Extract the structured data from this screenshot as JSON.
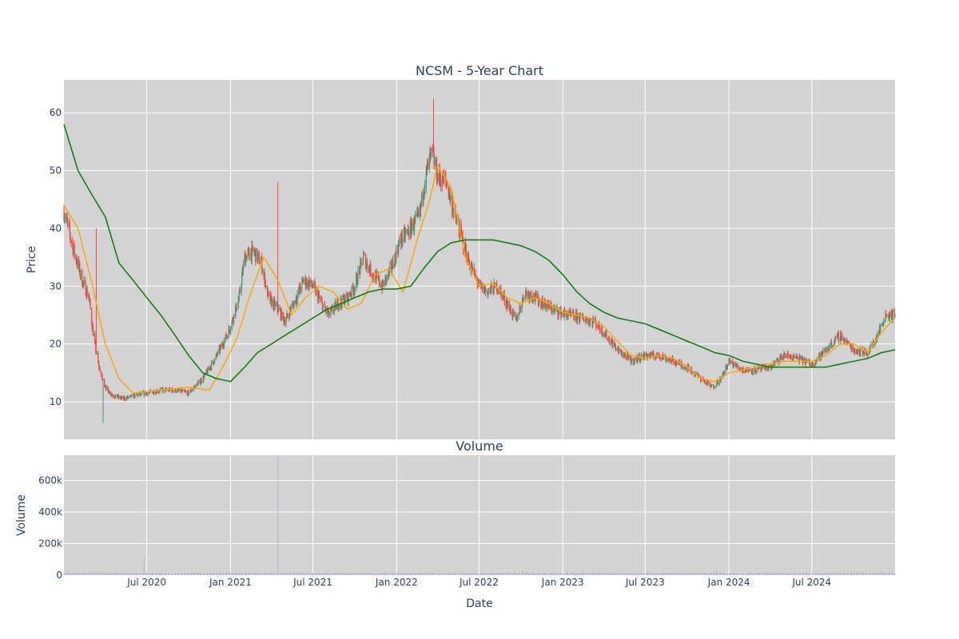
{
  "colors": {
    "plot_bg": "#d3d3d3",
    "grid": "#ffffff",
    "up": "#3d9970",
    "down": "#ff4136",
    "ma_short": "#ffa500",
    "ma_long": "#008000",
    "volume": "#b0b0d0",
    "text": "#2a3f5f"
  },
  "chart_data": [
    {
      "type": "candlestick",
      "title": "NCSM - 5-Year Chart",
      "xlabel": "",
      "ylabel": "Price",
      "ylim": [
        3.5,
        65.7
      ],
      "xlim": [
        "2020-01-01",
        "2024-12-31"
      ],
      "yticks": [
        10,
        20,
        30,
        40,
        50,
        60
      ],
      "xticks": [
        "2020-07-01",
        "2021-01-01",
        "2021-07-01",
        "2022-01-01",
        "2022-07-01",
        "2023-01-01",
        "2023-07-01",
        "2024-01-01",
        "2024-07-01"
      ],
      "grid": true,
      "close_path": [
        [
          "2020-01-01",
          43
        ],
        [
          "2020-01-20",
          37
        ],
        [
          "2020-02-10",
          31
        ],
        [
          "2020-02-25",
          28
        ],
        [
          "2020-03-05",
          22
        ],
        [
          "2020-03-15",
          17
        ],
        [
          "2020-03-25",
          14
        ],
        [
          "2020-04-05",
          12
        ],
        [
          "2020-04-20",
          11
        ],
        [
          "2020-05-10",
          10.5
        ],
        [
          "2020-06-01",
          11
        ],
        [
          "2020-07-01",
          11.5
        ],
        [
          "2020-08-01",
          12
        ],
        [
          "2020-09-01",
          12
        ],
        [
          "2020-10-01",
          11.5
        ],
        [
          "2020-11-01",
          14
        ],
        [
          "2020-11-25",
          17
        ],
        [
          "2020-12-15",
          20
        ],
        [
          "2021-01-01",
          23
        ],
        [
          "2021-01-20",
          28
        ],
        [
          "2021-02-01",
          35
        ],
        [
          "2021-02-20",
          36
        ],
        [
          "2021-03-10",
          34
        ],
        [
          "2021-03-25",
          28
        ],
        [
          "2021-04-15",
          26
        ],
        [
          "2021-05-01",
          24
        ],
        [
          "2021-05-20",
          27
        ],
        [
          "2021-06-10",
          31
        ],
        [
          "2021-07-01",
          30
        ],
        [
          "2021-07-20",
          27
        ],
        [
          "2021-08-05",
          25
        ],
        [
          "2021-08-25",
          27
        ],
        [
          "2021-09-15",
          28
        ],
        [
          "2021-10-01",
          30
        ],
        [
          "2021-10-20",
          35
        ],
        [
          "2021-11-10",
          32
        ],
        [
          "2021-12-01",
          30
        ],
        [
          "2021-12-20",
          33
        ],
        [
          "2022-01-10",
          38
        ],
        [
          "2022-02-01",
          40
        ],
        [
          "2022-02-20",
          42
        ],
        [
          "2022-03-05",
          49
        ],
        [
          "2022-03-20",
          53
        ],
        [
          "2022-04-01",
          49
        ],
        [
          "2022-04-20",
          48
        ],
        [
          "2022-05-10",
          42
        ],
        [
          "2022-05-25",
          38
        ],
        [
          "2022-06-10",
          34
        ],
        [
          "2022-07-01",
          30
        ],
        [
          "2022-07-20",
          29
        ],
        [
          "2022-08-10",
          30
        ],
        [
          "2022-09-01",
          27
        ],
        [
          "2022-09-20",
          24
        ],
        [
          "2022-10-10",
          29
        ],
        [
          "2022-11-01",
          28
        ],
        [
          "2022-11-20",
          27
        ],
        [
          "2022-12-10",
          26
        ],
        [
          "2023-01-10",
          25
        ],
        [
          "2023-02-10",
          24.5
        ],
        [
          "2023-03-10",
          24
        ],
        [
          "2023-04-01",
          22
        ],
        [
          "2023-05-01",
          19
        ],
        [
          "2023-06-01",
          17
        ],
        [
          "2023-07-01",
          18
        ],
        [
          "2023-08-01",
          18
        ],
        [
          "2023-09-01",
          17
        ],
        [
          "2023-10-01",
          16
        ],
        [
          "2023-11-01",
          14
        ],
        [
          "2023-11-25",
          12.5
        ],
        [
          "2023-12-15",
          14
        ],
        [
          "2024-01-01",
          17
        ],
        [
          "2024-02-01",
          15.5
        ],
        [
          "2024-03-01",
          15.5
        ],
        [
          "2024-04-01",
          16
        ],
        [
          "2024-05-01",
          18
        ],
        [
          "2024-06-01",
          17.5
        ],
        [
          "2024-07-01",
          16.5
        ],
        [
          "2024-08-01",
          19
        ],
        [
          "2024-09-01",
          21.5
        ],
        [
          "2024-10-01",
          19
        ],
        [
          "2024-11-01",
          18.5
        ],
        [
          "2024-11-20",
          21
        ],
        [
          "2024-12-10",
          25
        ],
        [
          "2024-12-31",
          25
        ]
      ],
      "spikes": [
        [
          "2020-03-12",
          40,
          23
        ],
        [
          "2021-04-15",
          48,
          27
        ],
        [
          "2022-03-23",
          62.5,
          50
        ],
        [
          "2020-03-27",
          6.3,
          11
        ]
      ],
      "series": [
        {
          "type": "line",
          "x": [
            "2020-01-01",
            "2020-02-01",
            "2020-03-01",
            "2020-04-01",
            "2020-05-01",
            "2020-06-01",
            "2020-08-01",
            "2020-10-01",
            "2020-11-15",
            "2020-12-15",
            "2021-01-15",
            "2021-02-15",
            "2021-03-15",
            "2021-04-15",
            "2021-05-15",
            "2021-06-15",
            "2021-07-15",
            "2021-08-15",
            "2021-09-15",
            "2021-10-15",
            "2021-11-15",
            "2021-12-15",
            "2022-01-15",
            "2022-02-15",
            "2022-03-15",
            "2022-04-01",
            "2022-05-01",
            "2022-06-01",
            "2022-07-01",
            "2022-08-01",
            "2022-09-01",
            "2022-10-01",
            "2022-11-01",
            "2022-12-01",
            "2023-01-01",
            "2023-02-01",
            "2023-03-01",
            "2023-04-01",
            "2023-05-01",
            "2023-06-01",
            "2023-07-01",
            "2023-08-01",
            "2023-09-01",
            "2023-10-01",
            "2023-11-01",
            "2023-12-01",
            "2024-01-01",
            "2024-02-01",
            "2024-03-01",
            "2024-04-01",
            "2024-05-01",
            "2024-06-01",
            "2024-07-01",
            "2024-08-01",
            "2024-09-01",
            "2024-10-01",
            "2024-11-01",
            "2024-12-01",
            "2024-12-31"
          ],
          "y": [
            44,
            40,
            31,
            20,
            14,
            11.5,
            12,
            12.5,
            12,
            16,
            21,
            29,
            35,
            31,
            25,
            28,
            30,
            29,
            26,
            27,
            32,
            33,
            29,
            38,
            45,
            51,
            47,
            35,
            30,
            30.5,
            28,
            27,
            28,
            27,
            25.5,
            25,
            24.5,
            23,
            20.5,
            18,
            17.5,
            18,
            17.5,
            16,
            14,
            13.5,
            15,
            15.5,
            16,
            16.5,
            17,
            17,
            17,
            18,
            20,
            20,
            18.5,
            22,
            24.5
          ],
          "color": "#ffa500"
        },
        {
          "type": "line",
          "x": [
            "2020-01-01",
            "2020-02-01",
            "2020-03-01",
            "2020-04-01",
            "2020-05-01",
            "2020-06-01",
            "2020-07-01",
            "2020-08-01",
            "2020-09-01",
            "2020-10-01",
            "2020-11-01",
            "2020-12-01",
            "2021-01-01",
            "2021-02-01",
            "2021-03-01",
            "2021-04-01",
            "2021-05-01",
            "2021-06-01",
            "2021-07-01",
            "2021-08-01",
            "2021-09-01",
            "2021-10-01",
            "2021-11-01",
            "2021-12-01",
            "2022-01-01",
            "2022-02-01",
            "2022-03-01",
            "2022-04-01",
            "2022-05-01",
            "2022-06-01",
            "2022-07-01",
            "2022-08-01",
            "2022-09-01",
            "2022-10-01",
            "2022-11-01",
            "2022-12-01",
            "2023-01-01",
            "2023-02-01",
            "2023-03-01",
            "2023-04-01",
            "2023-05-01",
            "2023-06-01",
            "2023-07-01",
            "2023-08-01",
            "2023-09-01",
            "2023-10-01",
            "2023-11-01",
            "2023-12-01",
            "2024-01-01",
            "2024-02-01",
            "2024-03-01",
            "2024-04-01",
            "2024-05-01",
            "2024-06-01",
            "2024-07-01",
            "2024-08-01",
            "2024-09-01",
            "2024-10-01",
            "2024-11-01",
            "2024-12-01",
            "2024-12-31"
          ],
          "y": [
            58,
            50,
            46,
            42,
            34,
            31,
            28,
            25,
            21.5,
            18,
            15,
            14,
            13.5,
            16,
            18.5,
            20,
            21.5,
            23,
            24.5,
            26,
            27,
            28,
            29,
            29.5,
            29.5,
            30,
            33,
            36,
            37.5,
            38,
            38,
            38,
            37.5,
            37,
            36,
            34.5,
            32,
            29,
            27,
            25.5,
            24.5,
            24,
            23.5,
            22.5,
            21.5,
            20.5,
            19.5,
            18.5,
            18,
            17,
            16.5,
            16,
            16,
            16,
            16,
            16,
            16.5,
            17,
            17.5,
            18.5,
            19
          ],
          "color": "#008000"
        }
      ]
    },
    {
      "type": "bar",
      "title": "Volume",
      "xlabel": "Date",
      "ylabel": "Volume",
      "ylim": [
        0,
        760000
      ],
      "yticks": [
        0,
        200000,
        400000,
        600000
      ],
      "ytick_labels": [
        "0",
        "200k",
        "400k",
        "600k"
      ],
      "xticks": [
        "2020-07-01",
        "2021-01-01",
        "2021-07-01",
        "2022-01-01",
        "2022-07-01",
        "2023-01-01",
        "2023-07-01",
        "2024-01-01",
        "2024-07-01"
      ],
      "xtick_labels": [
        "Jul 2020",
        "Jan 2021",
        "Jul 2021",
        "Jan 2022",
        "Jul 2022",
        "Jan 2023",
        "Jul 2023",
        "Jan 2024",
        "Jul 2024"
      ],
      "grid": true,
      "base_volume": 12000,
      "peaks": [
        [
          "2020-06-25",
          120000
        ],
        [
          "2021-04-15",
          760000
        ],
        [
          "2022-03-20",
          40000
        ],
        [
          "2023-02-15",
          30000
        ],
        [
          "2023-12-05",
          35000
        ]
      ]
    }
  ]
}
